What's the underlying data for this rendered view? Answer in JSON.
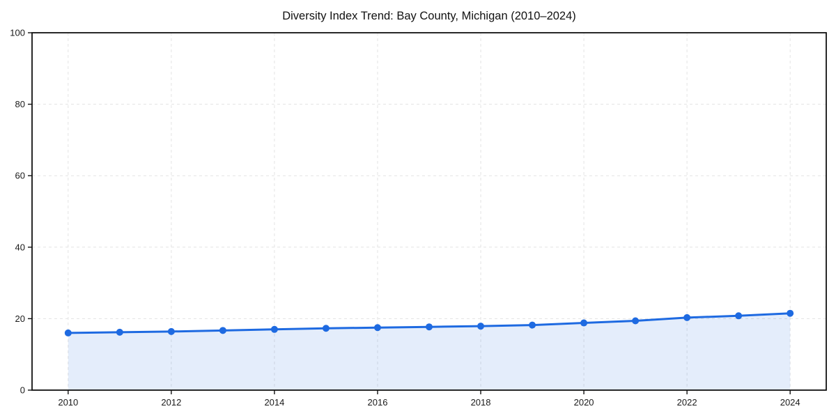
{
  "page": {
    "background": "#ffffff"
  },
  "chart_data": {
    "type": "line",
    "title": "Diversity Index Trend: Bay County, Michigan (2010–2024)",
    "x": [
      2010,
      2011,
      2012,
      2013,
      2014,
      2015,
      2016,
      2017,
      2018,
      2019,
      2020,
      2021,
      2022,
      2023,
      2024
    ],
    "series": [
      {
        "name": "Diversity Index",
        "values": [
          16.0,
          16.2,
          16.4,
          16.7,
          17.0,
          17.3,
          17.5,
          17.7,
          17.9,
          18.2,
          18.8,
          19.4,
          20.3,
          20.8,
          21.5
        ]
      }
    ],
    "xlabel": "",
    "ylabel": "",
    "ylim": [
      0,
      100
    ],
    "xlim": [
      2009.3,
      2024.7
    ],
    "yticks": [
      0,
      20,
      40,
      60,
      80,
      100
    ],
    "xticks": [
      2010,
      2012,
      2014,
      2016,
      2018,
      2020,
      2022,
      2024
    ],
    "grid": {
      "show": true,
      "style": "dashed",
      "color": "#e3e3e3"
    },
    "legend": "none",
    "area_fill": true,
    "colors": {
      "line": "#1e6ae1",
      "marker": "#1e6ae1",
      "fill": "#1e6ae1",
      "fill_opacity": 0.12,
      "spine": "#111111",
      "tick": "#111111",
      "title": "#111111",
      "background": "#ffffff"
    }
  }
}
